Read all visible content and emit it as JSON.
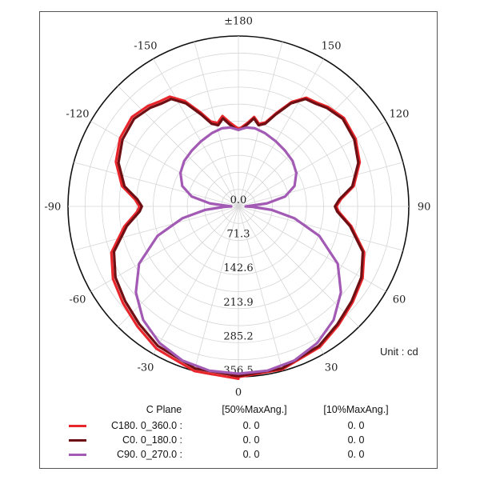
{
  "chart_data": {
    "type": "polar",
    "top_label": "±180",
    "angle_labels": [
      {
        "angle": 180,
        "text": "±180"
      },
      {
        "angle": 150,
        "text": "150"
      },
      {
        "angle": 120,
        "text": "120"
      },
      {
        "angle": 90,
        "text": "90"
      },
      {
        "angle": 60,
        "text": "60"
      },
      {
        "angle": 30,
        "text": "30"
      },
      {
        "angle": 0,
        "text": "0"
      },
      {
        "angle": -30,
        "text": "-30"
      },
      {
        "angle": -60,
        "text": "-60"
      },
      {
        "angle": -90,
        "text": "-90"
      },
      {
        "angle": -120,
        "text": "-120"
      },
      {
        "angle": -150,
        "text": "-150"
      }
    ],
    "radial_ticks": [
      0.0,
      71.3,
      142.6,
      213.9,
      285.2,
      356.5
    ],
    "radial_tick_labels": [
      "0.0",
      "71.3",
      "142.6",
      "213.9",
      "285.2",
      "356.5"
    ],
    "rmax": 356.5,
    "unit": "Unit : cd",
    "series": [
      {
        "name": "C180. 0_360.0 :",
        "color": "#e8262c",
        "points": [
          [
            0,
            357
          ],
          [
            15,
            353
          ],
          [
            30,
            340
          ],
          [
            40,
            325
          ],
          [
            50,
            312
          ],
          [
            60,
            300
          ],
          [
            70,
            280
          ],
          [
            80,
            240
          ],
          [
            87,
            210
          ],
          [
            90,
            205
          ],
          [
            94,
            215
          ],
          [
            100,
            245
          ],
          [
            110,
            270
          ],
          [
            120,
            283
          ],
          [
            130,
            288
          ],
          [
            138,
            280
          ],
          [
            143,
            272
          ],
          [
            148,
            268
          ],
          [
            153,
            245
          ],
          [
            158,
            210
          ],
          [
            162,
            185
          ],
          [
            166,
            178
          ],
          [
            170,
            190
          ],
          [
            174,
            175
          ],
          [
            178,
            165
          ],
          [
            180,
            163
          ]
        ],
        "mirror": true,
        "mirror_scale": 1.01
      },
      {
        "name": "C0. 0_180.0 :",
        "color": "#6e0f14",
        "points": [
          [
            0,
            355
          ],
          [
            15,
            351
          ],
          [
            30,
            337
          ],
          [
            40,
            322
          ],
          [
            50,
            309
          ],
          [
            60,
            297
          ],
          [
            70,
            277
          ],
          [
            80,
            237
          ],
          [
            87,
            207
          ],
          [
            90,
            202
          ],
          [
            94,
            212
          ],
          [
            100,
            242
          ],
          [
            110,
            267
          ],
          [
            120,
            280
          ],
          [
            130,
            285
          ],
          [
            138,
            277
          ],
          [
            143,
            269
          ],
          [
            148,
            265
          ],
          [
            153,
            242
          ],
          [
            158,
            207
          ],
          [
            162,
            182
          ],
          [
            166,
            175
          ],
          [
            170,
            187
          ],
          [
            174,
            172
          ],
          [
            178,
            162
          ],
          [
            180,
            160
          ]
        ],
        "mirror": true,
        "mirror_scale": 1.0
      },
      {
        "name": "C90. 0_270.0 :",
        "color": "#a25ab4",
        "points": [
          [
            0,
            350
          ],
          [
            10,
            349
          ],
          [
            20,
            343
          ],
          [
            30,
            330
          ],
          [
            40,
            310
          ],
          [
            50,
            280
          ],
          [
            60,
            240
          ],
          [
            70,
            180
          ],
          [
            78,
            120
          ],
          [
            84,
            70
          ],
          [
            88,
            30
          ],
          [
            90,
            15
          ],
          [
            92,
            20
          ],
          [
            96,
            60
          ],
          [
            102,
            100
          ],
          [
            110,
            125
          ],
          [
            120,
            140
          ],
          [
            130,
            148
          ],
          [
            140,
            152
          ],
          [
            150,
            157
          ],
          [
            160,
            163
          ],
          [
            168,
            167
          ],
          [
            174,
            166
          ],
          [
            178,
            162
          ],
          [
            180,
            160
          ]
        ],
        "mirror": true,
        "mirror_scale": 1.0
      }
    ]
  },
  "legend": {
    "header_cplane": "C Plane",
    "header_50": "[50%MaxAng.]",
    "header_10": "[10%MaxAng.]",
    "rows": [
      {
        "label": "C180. 0_360.0 :",
        "v50": "0. 0",
        "v10": "0. 0",
        "color": "#e8262c"
      },
      {
        "label": "C0. 0_180.0 :",
        "v50": "0. 0",
        "v10": "0. 0",
        "color": "#6e0f14"
      },
      {
        "label": "C90. 0_270.0 :",
        "v50": "0. 0",
        "v10": "0. 0",
        "color": "#a25ab4"
      }
    ]
  }
}
